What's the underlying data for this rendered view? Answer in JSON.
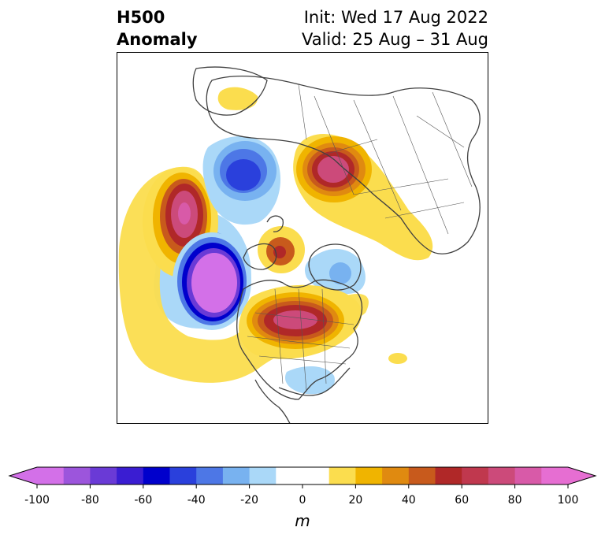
{
  "title": {
    "left_line1": "H500",
    "left_line2": "Anomaly",
    "right_line1": "Init: Wed 17 Aug 2022",
    "right_line2": "Valid: 25 Aug – 31 Aug"
  },
  "colorbar": {
    "unit_label": "m",
    "ticks": [
      "-100",
      "-80",
      "-60",
      "-40",
      "-20",
      "0",
      "20",
      "40",
      "60",
      "80",
      "100"
    ],
    "bins": [
      {
        "from": -100,
        "to": -90,
        "color": "#d370e8"
      },
      {
        "from": -90,
        "to": -80,
        "color": "#9c55dc"
      },
      {
        "from": -80,
        "to": -70,
        "color": "#6a3ad6"
      },
      {
        "from": -70,
        "to": -60,
        "color": "#3a1dd2"
      },
      {
        "from": -60,
        "to": -50,
        "color": "#0000cc"
      },
      {
        "from": -50,
        "to": -40,
        "color": "#2a40dc"
      },
      {
        "from": -40,
        "to": -30,
        "color": "#4d77e6"
      },
      {
        "from": -30,
        "to": -20,
        "color": "#78b2f0"
      },
      {
        "from": -20,
        "to": -10,
        "color": "#aad8f8"
      },
      {
        "from": -10,
        "to": 10,
        "color": "#ffffff"
      },
      {
        "from": 10,
        "to": 20,
        "color": "#fbdd4e"
      },
      {
        "from": 20,
        "to": 30,
        "color": "#f0b400"
      },
      {
        "from": 30,
        "to": 40,
        "color": "#e08a10"
      },
      {
        "from": 40,
        "to": 50,
        "color": "#c85a1c"
      },
      {
        "from": 50,
        "to": 60,
        "color": "#b02828"
      },
      {
        "from": 60,
        "to": 70,
        "color": "#c0384e"
      },
      {
        "from": 70,
        "to": 80,
        "color": "#cc4a7a"
      },
      {
        "from": 80,
        "to": 90,
        "color": "#d85aa8"
      },
      {
        "from": 90,
        "to": 100,
        "color": "#e66ed2"
      }
    ],
    "under_color": "#d370e8",
    "over_color": "#e66ed2"
  },
  "map": {
    "projection": "north-polar-stereographic",
    "anomaly_centers": [
      {
        "region": "Gulf of Alaska / NE Pacific",
        "sign": "negative",
        "peak": -100
      },
      {
        "region": "Central North Pacific",
        "sign": "positive",
        "peak": 80
      },
      {
        "region": "Alaska",
        "sign": "positive",
        "peak": 60
      },
      {
        "region": "Central Canada / Hudson Bay",
        "sign": "positive",
        "peak": 70
      },
      {
        "region": "Greenland Sea / NE Canada",
        "sign": "negative",
        "peak": -30
      },
      {
        "region": "Northern Scandinavia / Barents",
        "sign": "positive",
        "peak": 70
      },
      {
        "region": "Central Siberia",
        "sign": "negative",
        "peak": -60
      },
      {
        "region": "Southeast United States",
        "sign": "negative",
        "peak": -20
      },
      {
        "region": "North Africa / Sahara",
        "sign": "positive",
        "peak": 20
      }
    ]
  }
}
